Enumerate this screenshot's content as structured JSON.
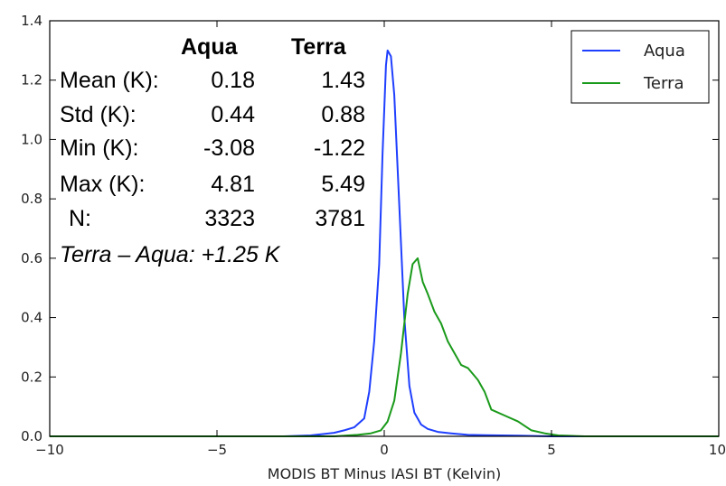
{
  "chart_data": {
    "type": "line",
    "xlabel": "MODIS BT Minus IASI BT (Kelvin)",
    "ylabel": "",
    "xlim": [
      -10,
      10
    ],
    "ylim": [
      0,
      1.4
    ],
    "xticks": [
      "−10",
      "−5",
      "0",
      "5",
      "10"
    ],
    "xtick_values": [
      -10,
      -5,
      0,
      5,
      10
    ],
    "yticks": [
      "0.0",
      "0.2",
      "0.4",
      "0.6",
      "0.8",
      "1.0",
      "1.2",
      "1.4"
    ],
    "ytick_values": [
      0,
      0.2,
      0.4,
      0.6,
      0.8,
      1.0,
      1.2,
      1.4
    ],
    "legend_position": "top-right",
    "series": [
      {
        "name": "Aqua",
        "color": "#1f3fff",
        "x": [
          -10,
          -3,
          -2.2,
          -1.8,
          -1.5,
          -1.2,
          -0.9,
          -0.6,
          -0.45,
          -0.3,
          -0.15,
          -0.05,
          0.05,
          0.1,
          0.2,
          0.3,
          0.45,
          0.6,
          0.75,
          0.9,
          1.1,
          1.3,
          1.6,
          2.0,
          2.5,
          3.0,
          4.0,
          5.0,
          10
        ],
        "y": [
          0,
          0,
          0.003,
          0.008,
          0.012,
          0.02,
          0.03,
          0.06,
          0.15,
          0.32,
          0.58,
          0.95,
          1.25,
          1.3,
          1.28,
          1.15,
          0.78,
          0.4,
          0.17,
          0.08,
          0.04,
          0.025,
          0.015,
          0.01,
          0.005,
          0.004,
          0.002,
          0,
          0
        ]
      },
      {
        "name": "Terra",
        "color": "#1a9a1a",
        "x": [
          -10,
          -1.5,
          -0.8,
          -0.4,
          -0.1,
          0.1,
          0.3,
          0.5,
          0.7,
          0.85,
          1.0,
          1.15,
          1.3,
          1.5,
          1.7,
          1.9,
          2.1,
          2.3,
          2.5,
          2.8,
          3.0,
          3.2,
          3.6,
          4.0,
          4.4,
          4.8,
          5.2,
          6,
          10
        ],
        "y": [
          0,
          0,
          0.005,
          0.01,
          0.02,
          0.05,
          0.12,
          0.28,
          0.48,
          0.58,
          0.6,
          0.52,
          0.48,
          0.42,
          0.38,
          0.32,
          0.28,
          0.24,
          0.23,
          0.19,
          0.15,
          0.09,
          0.07,
          0.05,
          0.02,
          0.01,
          0.003,
          0,
          0
        ]
      }
    ],
    "annotation": {
      "header_aqua": "Aqua",
      "header_terra": "Terra",
      "rows": [
        {
          "label": "Mean (K):",
          "aqua": "0.18",
          "terra": "1.43"
        },
        {
          "label": "Std (K):",
          "aqua": "0.44",
          "terra": "0.88"
        },
        {
          "label": "Min (K):",
          "aqua": "-3.08",
          "terra": "-1.22"
        },
        {
          "label": "Max (K):",
          "aqua": "4.81",
          "terra": "5.49"
        },
        {
          "label": "N:",
          "aqua": "3323",
          "terra": "3781"
        }
      ],
      "difference": "Terra  – Aqua: +1.25 K"
    }
  }
}
